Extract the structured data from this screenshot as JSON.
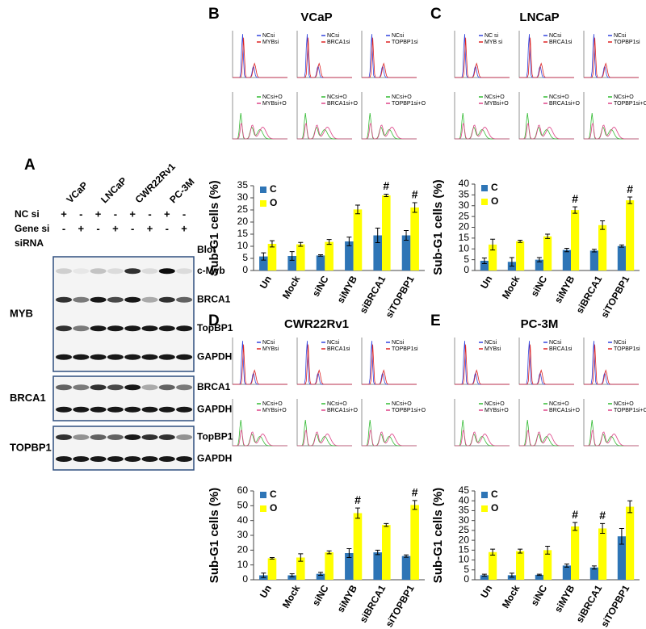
{
  "panel_labels": [
    "A",
    "B",
    "C",
    "D",
    "E"
  ],
  "blot": {
    "cell_lines": [
      "VCaP",
      "LNCaP",
      "CWR22Rv1",
      "PC-3M"
    ],
    "rows": [
      {
        "label": "NC si",
        "signs": [
          "+",
          "-",
          "+",
          "-",
          "+",
          "-",
          "+",
          "-"
        ]
      },
      {
        "label": "Gene si",
        "signs": [
          "-",
          "+",
          "-",
          "+",
          "-",
          "+",
          "-",
          "+"
        ]
      }
    ],
    "sirna_label": "siRNA",
    "blot_label": "Blot",
    "groups": [
      {
        "name": "MYB",
        "bands": [
          "c-Myb",
          "BRCA1",
          "TopBP1",
          "GAPDH"
        ]
      },
      {
        "name": "BRCA1",
        "bands": [
          "BRCA1",
          "GAPDH"
        ]
      },
      {
        "name": "TOPBP1",
        "bands": [
          "TopBP1",
          "GAPDH"
        ]
      }
    ]
  },
  "flow_panels": [
    {
      "title": "VCaP",
      "legends": [
        [
          "NCsi",
          "MYBsi"
        ],
        [
          "NCsi",
          "BRCA1si"
        ],
        [
          "NCsi",
          "TOPBP1si"
        ],
        [
          "NCsi+O",
          "MYBsi+O"
        ],
        [
          "NCsi+O",
          "BRCA1si+O"
        ],
        [
          "NCsi+O",
          "TOPBP1si+O"
        ]
      ]
    },
    {
      "title": "LNCaP",
      "legends": [
        [
          "NC si",
          "MYB si"
        ],
        [
          "NCsi",
          "BRCA1si"
        ],
        [
          "NCsi",
          "TOPBP1si"
        ],
        [
          "NCsi+O",
          "MYBsi+O"
        ],
        [
          "NCsi+O",
          "BRCA1si+O"
        ],
        [
          "NCsi+O",
          "TOPBP1si+O"
        ]
      ]
    },
    {
      "title": "CWR22Rv1",
      "legends": [
        [
          "NCsi",
          "MYBsi"
        ],
        [
          "NCsi",
          "BRCA1si"
        ],
        [
          "NCsi",
          "TOPBP1si"
        ],
        [
          "NCsi+O",
          "MYBsi+O"
        ],
        [
          "NCsi+O",
          "BRCA1si+O"
        ],
        [
          "NCsi+O",
          "TOPBP1si+O"
        ]
      ]
    },
    {
      "title": "PC-3M",
      "legends": [
        [
          "NCsi",
          "MYBsi"
        ],
        [
          "NCsi",
          "BRCA1si"
        ],
        [
          "NCsi",
          "TOPBP1si"
        ],
        [
          "NCsi+O",
          "MYBsi+O"
        ],
        [
          "NCsi+O",
          "BRCA1si+O"
        ],
        [
          "NCsi+O",
          "TOPBP1si+O"
        ]
      ]
    }
  ],
  "chart_data": [
    {
      "type": "bar",
      "ylabel": "Sub-G1 cells (%)",
      "categories": [
        "Un",
        "Mock",
        "siNC",
        "siMYB",
        "siBRCA1",
        "siTOPBP1"
      ],
      "series": [
        {
          "name": "C",
          "color": "#2e75b6",
          "values": [
            5.8,
            6,
            6.2,
            12,
            14.5,
            14.5
          ],
          "errors": [
            1.5,
            1.8,
            0.3,
            1.8,
            3,
            2
          ]
        },
        {
          "name": "O",
          "color": "#ffff00",
          "values": [
            11,
            10.8,
            11.8,
            25.2,
            31,
            26
          ],
          "errors": [
            1.3,
            0.8,
            1,
            1.8,
            0.5,
            2
          ],
          "annotations": [
            null,
            null,
            null,
            null,
            "#",
            "#"
          ]
        }
      ],
      "ylim": [
        0,
        35
      ],
      "yticks": [
        0,
        5,
        10,
        15,
        20,
        25,
        30,
        35
      ]
    },
    {
      "type": "bar",
      "ylabel": "Sub-G1 cells (%)",
      "categories": [
        "Un",
        "Mock",
        "siNC",
        "siMYB",
        "siBRCA1",
        "siTOPBP1"
      ],
      "series": [
        {
          "name": "C",
          "color": "#2e75b6",
          "values": [
            4.5,
            4,
            5,
            9.5,
            9.2,
            11.3
          ],
          "errors": [
            1.3,
            2,
            1,
            0.8,
            0.6,
            0.5
          ]
        },
        {
          "name": "O",
          "color": "#ffff00",
          "values": [
            12,
            13.5,
            15.8,
            28,
            21,
            32.5
          ],
          "errors": [
            2.5,
            0.5,
            1,
            1.5,
            2,
            1.5
          ],
          "annotations": [
            null,
            null,
            null,
            "#",
            null,
            "#"
          ]
        }
      ],
      "ylim": [
        0,
        40
      ],
      "yticks": [
        0,
        5,
        10,
        15,
        20,
        25,
        30,
        35,
        40
      ]
    },
    {
      "type": "bar",
      "ylabel": "Sub-G1 cells (%)",
      "categories": [
        "Un",
        "Mock",
        "siNC",
        "siMYB",
        "siBRCA1",
        "siTOPBP1"
      ],
      "series": [
        {
          "name": "C",
          "color": "#2e75b6",
          "values": [
            3,
            3,
            4,
            18,
            18.5,
            16
          ],
          "errors": [
            1.5,
            1,
            1,
            3,
            1.5,
            0.8
          ]
        },
        {
          "name": "O",
          "color": "#ffff00",
          "values": [
            14.5,
            15,
            18.5,
            45,
            37,
            50.5
          ],
          "errors": [
            0.5,
            2.5,
            1,
            3.5,
            1,
            3
          ],
          "annotations": [
            null,
            null,
            null,
            "#",
            null,
            "#"
          ]
        }
      ],
      "ylim": [
        0,
        60
      ],
      "yticks": [
        0,
        10,
        20,
        30,
        40,
        50,
        60
      ]
    },
    {
      "type": "bar",
      "ylabel": "Sub-G1 cells (%)",
      "categories": [
        "Un",
        "Mock",
        "siNC",
        "siMYB",
        "siBRCA1",
        "siTOPBP1"
      ],
      "series": [
        {
          "name": "C",
          "color": "#2e75b6",
          "values": [
            2.3,
            2.3,
            2.5,
            7.2,
            6.2,
            22
          ],
          "errors": [
            0.5,
            1,
            0.3,
            0.8,
            0.8,
            4
          ]
        },
        {
          "name": "O",
          "color": "#ffff00",
          "values": [
            14,
            14.5,
            15,
            27,
            26,
            37
          ],
          "errors": [
            1.5,
            1,
            2,
            2,
            2.5,
            3
          ],
          "annotations": [
            null,
            null,
            null,
            "#",
            "#",
            null
          ]
        }
      ],
      "ylim": [
        0,
        45
      ],
      "yticks": [
        0,
        5,
        10,
        15,
        20,
        25,
        30,
        35,
        40,
        45
      ]
    }
  ]
}
